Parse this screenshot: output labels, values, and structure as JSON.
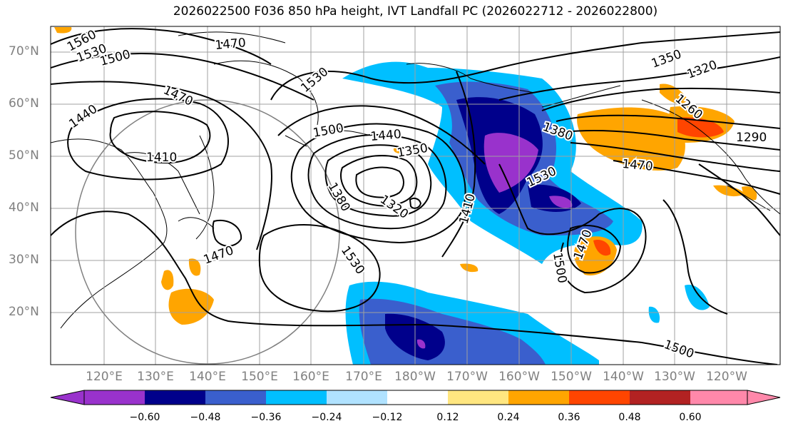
{
  "title": "2026022500 F036 850 hPa height, IVT Landfall PC (2026022712 - 2026022800)",
  "lat_labels": [
    "70°N",
    "60°N",
    "50°N",
    "40°N",
    "30°N",
    "20°N"
  ],
  "lon_labels": [
    "120°E",
    "130°E",
    "140°E",
    "150°E",
    "160°E",
    "170°E",
    "180°W",
    "170°W",
    "160°W",
    "150°W",
    "140°W",
    "130°W",
    "120°W"
  ],
  "colorbar": {
    "colors": [
      "#9932cc",
      "#00008b",
      "#3a5fcd",
      "#00bfff",
      "#b0e2ff",
      "#ffffff",
      "#ffe680",
      "#ffa500",
      "#ff4500",
      "#b22222",
      "#ff88aa"
    ],
    "tick_labels": [
      "−0.60",
      "−0.48",
      "−0.36",
      "−0.24",
      "−0.12",
      "0.12",
      "0.24",
      "0.36",
      "0.48",
      "0.60"
    ]
  },
  "contour_labels": [
    "1560",
    "1530",
    "1500",
    "1470",
    "1440",
    "1410",
    "1470",
    "1530",
    "1500",
    "1440",
    "1350",
    "1320",
    "1380",
    "1410",
    "1530",
    "1470",
    "1530",
    "1380",
    "1350",
    "1320",
    "1260",
    "1290",
    "1470",
    "1500",
    "1470",
    "1500"
  ]
}
